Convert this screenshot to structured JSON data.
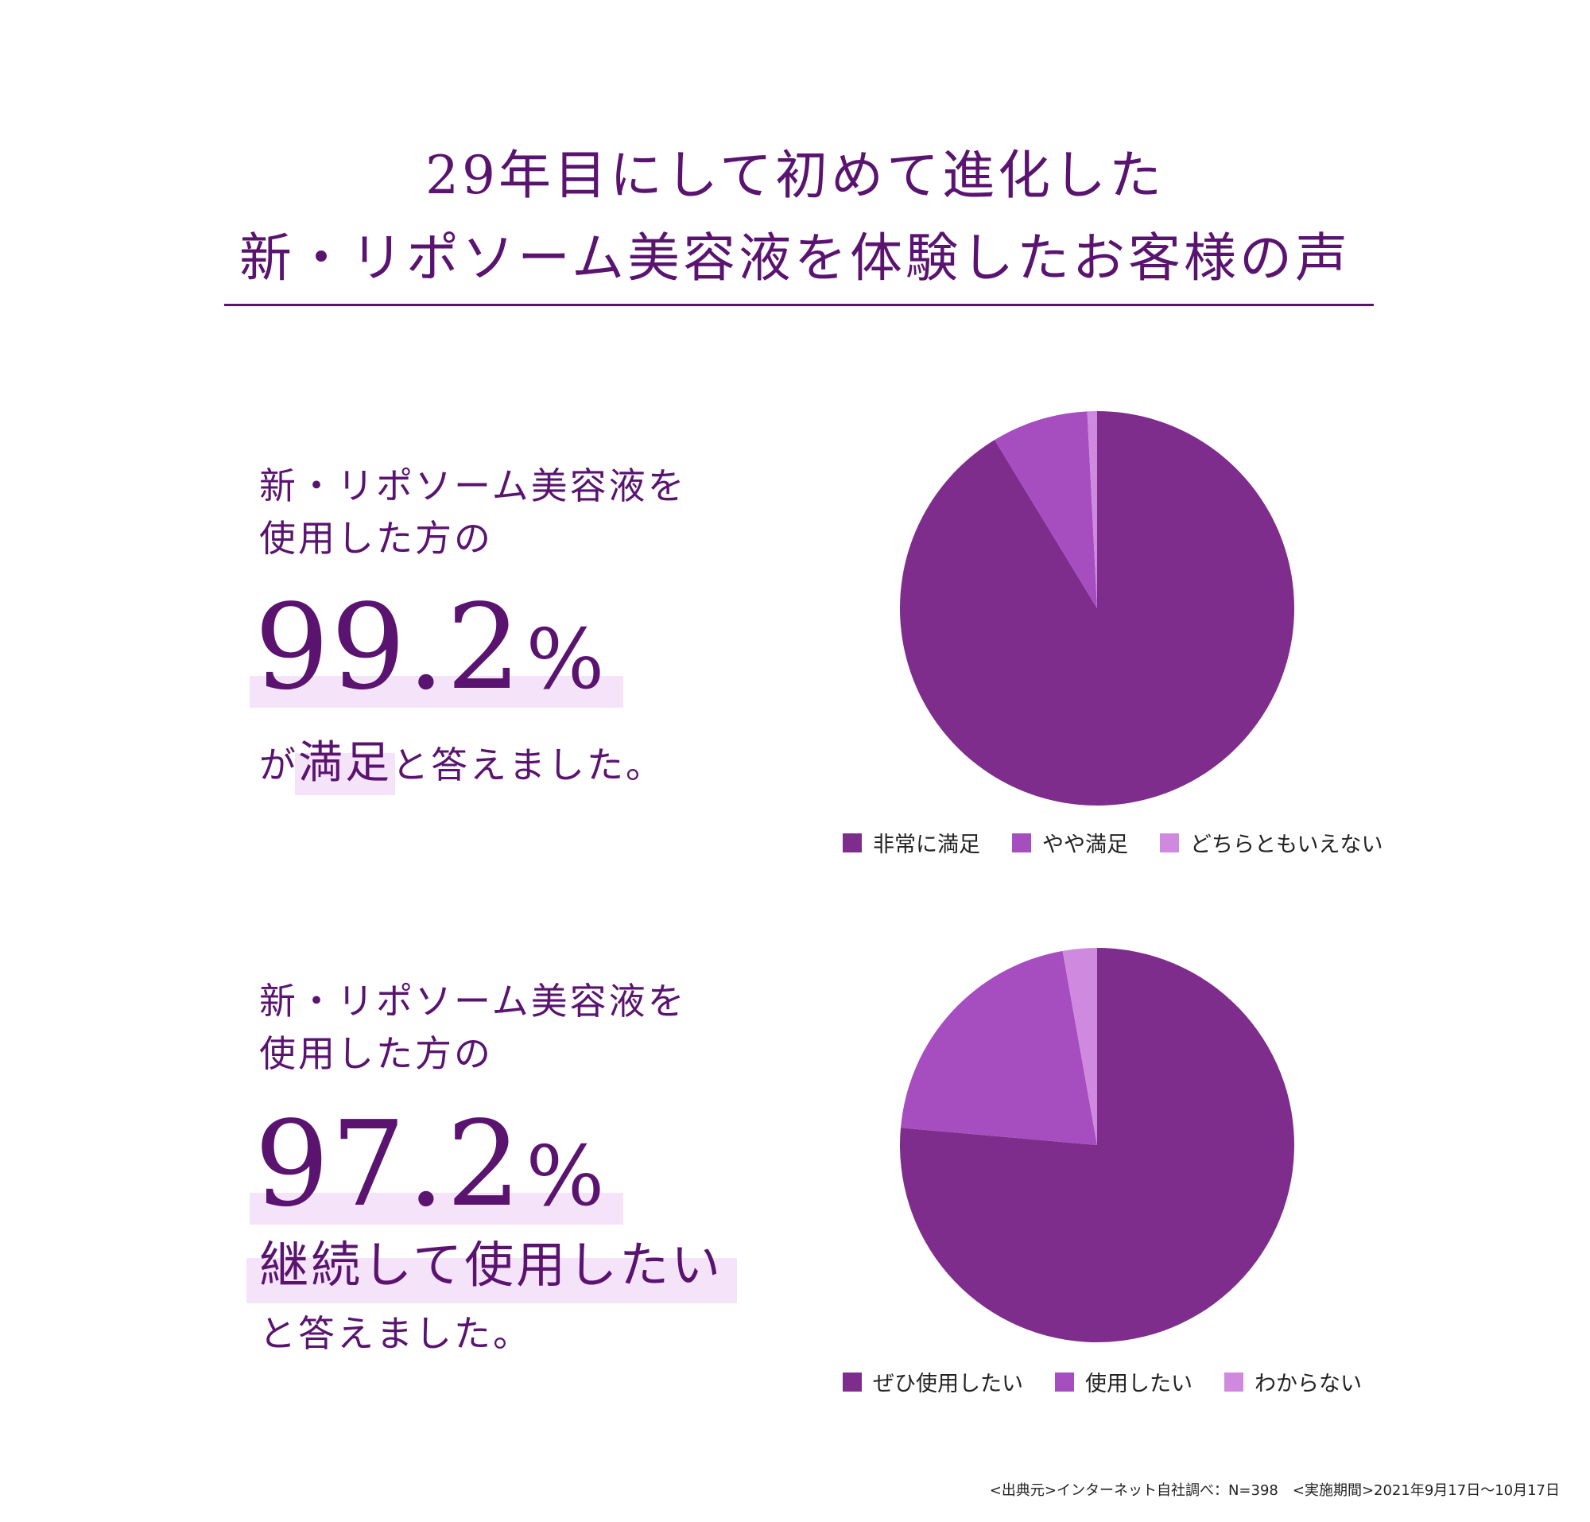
{
  "title": {
    "line1": "29年目にして初めて進化した",
    "line2": "新・リポソーム美容液を体験したお客様の声"
  },
  "section1": {
    "lead_line1": "新・リポソーム美容液を",
    "lead_line2": "使用した方の",
    "figure": "99.2",
    "figure_unit": "%",
    "sentence_prefix": "が",
    "sentence_emphasis": "満足",
    "sentence_suffix": "と答えました。"
  },
  "section2": {
    "lead_line1": "新・リポソーム美容液を",
    "lead_line2": "使用した方の",
    "figure": "97.2",
    "figure_unit": "%",
    "sentence_emphasis": "継続して使用したい",
    "sentence_suffix": "と答えました。"
  },
  "chart_data": [
    {
      "type": "pie",
      "categories": [
        "非常に満足",
        "やや満足",
        "どちらともいえない"
      ],
      "values": [
        91.3,
        7.9,
        0.8
      ],
      "colors": [
        "#7f2d8d",
        "#a64ebf",
        "#cf8ae0"
      ],
      "legend_position": "bottom"
    },
    {
      "type": "pie",
      "categories": [
        "ぜひ使用したい",
        "使用したい",
        "わからない"
      ],
      "values": [
        76.4,
        20.8,
        2.8
      ],
      "colors": [
        "#7f2d8d",
        "#a64ebf",
        "#cf8ae0"
      ],
      "legend_position": "bottom"
    }
  ],
  "footnote": "<出典元>インターネット自社調べ：N=398　<実施期間>2021年9月17日〜10月17日"
}
